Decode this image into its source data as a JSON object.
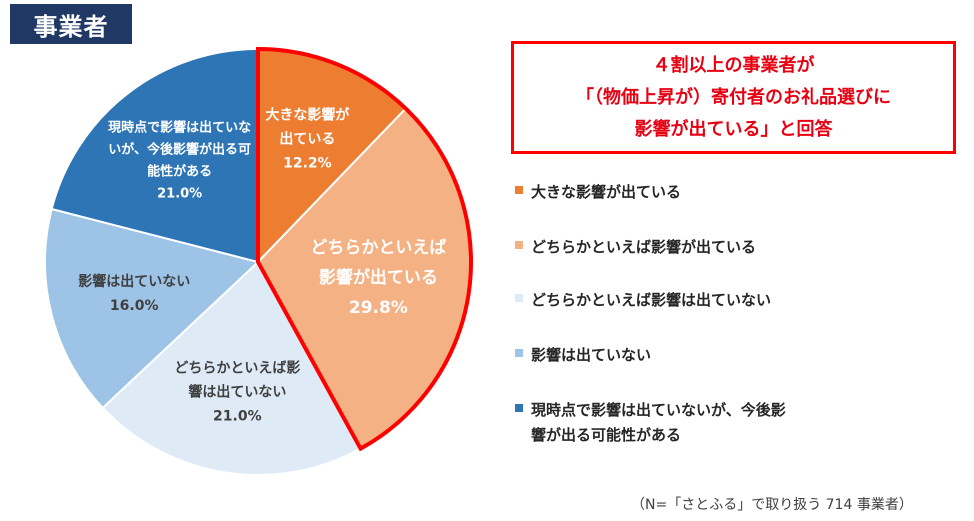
{
  "header": {
    "tag": "事業者"
  },
  "callout": {
    "lines": [
      "４割以上の事業者が",
      "「（物価上昇が）寄付者のお礼品選びに",
      "影響が出ている」と回答"
    ]
  },
  "note": "（N=「さとふる」で取り扱う 714 事業者）",
  "colors": {
    "slice_1": "#ed7d31",
    "slice_2": "#f4b183",
    "slice_3": "#deebf7",
    "slice_4": "#9dc3e6",
    "slice_5": "#2e75b6",
    "highlight": "#ff0000"
  },
  "chart_data": {
    "type": "pie",
    "unit": "%",
    "slices": [
      {
        "label": "大きな影響が出ている",
        "value": 12.2,
        "value_label": "12.2%",
        "label_lines": [
          "大きな影響が",
          "出ている"
        ]
      },
      {
        "label": "どちらかといえば影響が出ている",
        "value": 29.8,
        "value_label": "29.8%",
        "label_lines": [
          "どちらかといえば",
          "影響が出ている"
        ]
      },
      {
        "label": "どちらかといえば影響は出ていない",
        "value": 21.0,
        "value_label": "21.0%",
        "label_lines": [
          "どちらかといえば影",
          "響は出ていない"
        ]
      },
      {
        "label": "影響は出ていない",
        "value": 16.0,
        "value_label": "16.0%",
        "label_lines": [
          "影響は出ていない"
        ]
      },
      {
        "label": "現時点で影響は出ていないが、今後影響が出る可能性がある",
        "value": 21.0,
        "value_label": "21.0%",
        "label_lines": [
          "現時点で影響は出ていな",
          "いが、今後影響が出る可",
          "能性がある"
        ]
      }
    ],
    "legend": {
      "position": "right",
      "items": [
        {
          "lines": [
            "大きな影響が出ている"
          ]
        },
        {
          "lines": [
            "どちらかといえば影響が出ている"
          ]
        },
        {
          "lines": [
            "どちらかといえば影響は出ていない"
          ]
        },
        {
          "lines": [
            "影響は出ていない"
          ]
        },
        {
          "lines": [
            "現時点で影響は出ていないが、今後影",
            "響が出る可能性がある"
          ]
        }
      ]
    },
    "highlighted_slices": [
      0,
      1
    ]
  }
}
